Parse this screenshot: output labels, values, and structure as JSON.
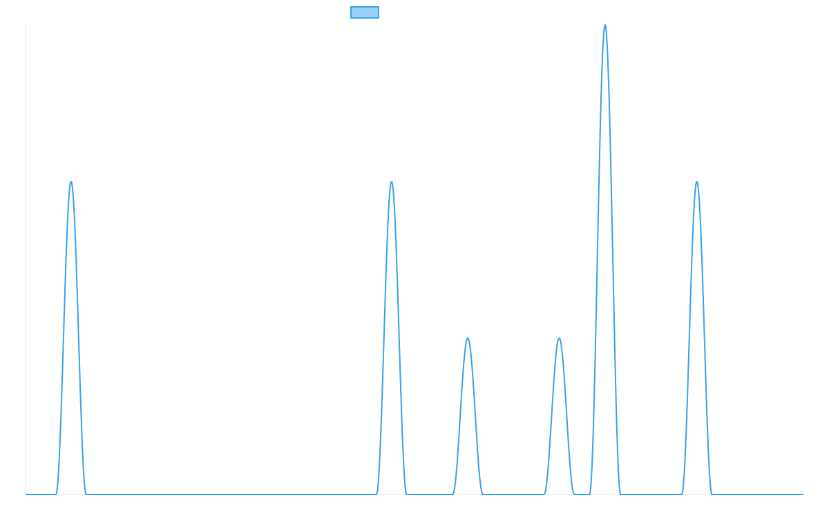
{
  "chart_data": {
    "type": "line",
    "title": "",
    "xlabel": "",
    "ylabel": "",
    "xlim": [
      0,
      1
    ],
    "ylim": [
      0,
      3
    ],
    "grid": false,
    "legend": {
      "placement": "top-center",
      "entries": [
        {
          "label": "",
          "color": "#36a2eb"
        }
      ]
    },
    "series": [
      {
        "color": "#36a2eb",
        "fill": "#9ad0f5",
        "peaks": [
          {
            "x": 0.0585,
            "height": 2,
            "half_width": 0.0195
          },
          {
            "x": 0.4705,
            "height": 2,
            "half_width": 0.0195
          },
          {
            "x": 0.5685,
            "height": 1,
            "half_width": 0.0195
          },
          {
            "x": 0.686,
            "height": 1,
            "half_width": 0.0195
          },
          {
            "x": 0.745,
            "height": 3,
            "half_width": 0.02
          },
          {
            "x": 0.863,
            "height": 2,
            "half_width": 0.0195
          }
        ]
      }
    ]
  }
}
